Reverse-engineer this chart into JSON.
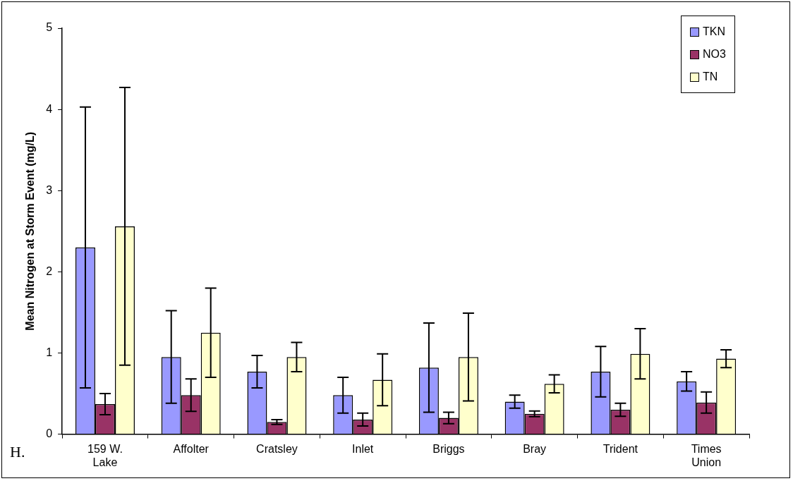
{
  "chart_data": {
    "type": "bar",
    "ylabel": "Mean Nitrogen at Storm Event (mg/L)",
    "categories": [
      "159 W. Lake",
      "Affolter",
      "Cratsley",
      "Inlet",
      "Briggs",
      "Bray",
      "Trident",
      "Times Union"
    ],
    "series": [
      {
        "name": "TKN",
        "color": "#9999ff",
        "values": [
          2.3,
          0.95,
          0.77,
          0.48,
          0.82,
          0.4,
          0.77,
          0.65
        ],
        "errors": [
          1.73,
          0.57,
          0.2,
          0.22,
          0.55,
          0.08,
          0.31,
          0.12
        ]
      },
      {
        "name": "NO3",
        "color": "#993366",
        "values": [
          0.37,
          0.48,
          0.15,
          0.18,
          0.2,
          0.25,
          0.3,
          0.39
        ],
        "errors": [
          0.13,
          0.2,
          0.03,
          0.08,
          0.07,
          0.035,
          0.08,
          0.13
        ]
      },
      {
        "name": "TN",
        "color": "#ffffcc",
        "values": [
          2.56,
          1.25,
          0.95,
          0.67,
          0.95,
          0.62,
          0.99,
          0.93
        ],
        "errors": [
          1.71,
          0.55,
          0.18,
          0.32,
          0.54,
          0.11,
          0.31,
          0.11
        ]
      }
    ],
    "ylim": [
      0,
      5
    ],
    "yticks": [
      0,
      1,
      2,
      3,
      4,
      5
    ],
    "grid": false,
    "legend": "top right",
    "annotations": [
      "H."
    ]
  }
}
